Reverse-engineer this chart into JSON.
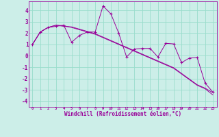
{
  "xlabel": "Windchill (Refroidissement éolien,°C)",
  "background_color": "#cceee8",
  "grid_color": "#99ddcc",
  "line_color": "#990099",
  "x_data": [
    0,
    1,
    2,
    3,
    4,
    5,
    6,
    7,
    8,
    9,
    10,
    11,
    12,
    13,
    14,
    15,
    16,
    17,
    18,
    19,
    20,
    21,
    22,
    23
  ],
  "y_line1": [
    1.0,
    2.1,
    2.5,
    2.6,
    2.7,
    1.2,
    1.8,
    2.1,
    2.1,
    4.4,
    3.7,
    2.0,
    -0.1,
    0.6,
    0.65,
    0.65,
    -0.1,
    1.1,
    1.05,
    -0.6,
    -0.2,
    -0.15,
    -2.4,
    -3.2
  ],
  "y_line2": [
    1.0,
    2.1,
    2.5,
    2.7,
    2.6,
    2.55,
    2.35,
    2.15,
    1.95,
    1.65,
    1.35,
    1.05,
    0.75,
    0.45,
    0.15,
    -0.15,
    -0.45,
    -0.75,
    -1.05,
    -1.55,
    -2.05,
    -2.55,
    -2.85,
    -3.25
  ],
  "y_line3": [
    1.0,
    2.1,
    2.5,
    2.7,
    2.65,
    2.5,
    2.3,
    2.1,
    1.9,
    1.6,
    1.3,
    1.0,
    0.7,
    0.4,
    0.1,
    -0.2,
    -0.5,
    -0.8,
    -1.1,
    -1.6,
    -2.1,
    -2.6,
    -2.9,
    -3.45
  ],
  "ylim": [
    -4.5,
    4.8
  ],
  "xlim": [
    -0.5,
    23.5
  ],
  "yticks": [
    -4,
    -3,
    -2,
    -1,
    0,
    1,
    2,
    3,
    4
  ],
  "xticks": [
    0,
    1,
    2,
    3,
    4,
    5,
    6,
    7,
    8,
    9,
    10,
    11,
    12,
    13,
    14,
    15,
    16,
    17,
    18,
    19,
    20,
    21,
    22,
    23
  ]
}
